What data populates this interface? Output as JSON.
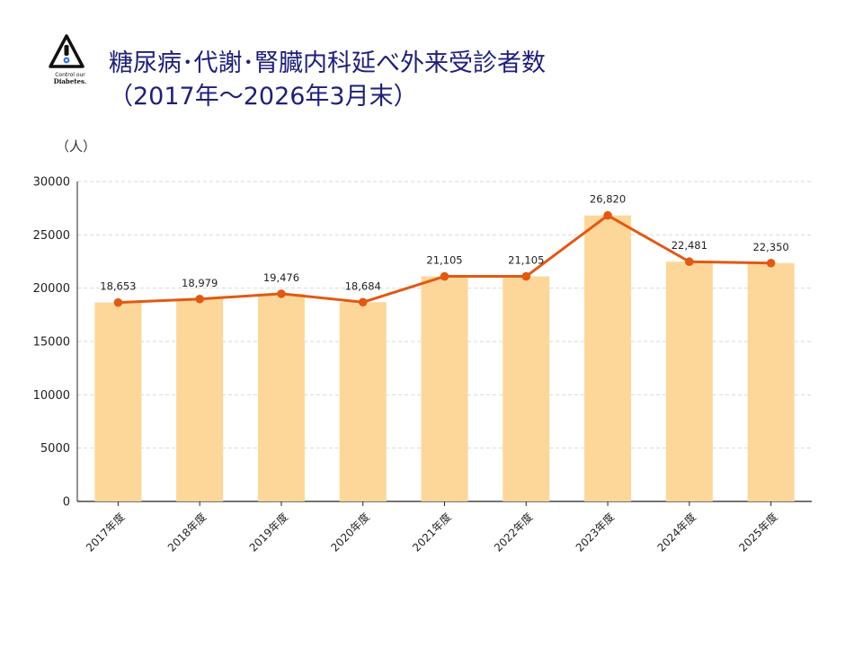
{
  "logo": {
    "text_line1": "Control our",
    "text_line2": "Diabetes.",
    "icon": "warning-triangle-icon"
  },
  "header": {
    "title_line1": "糖尿病･代謝･腎臓内科延べ外来受診者数",
    "title_line2": "（2017年～2026年3月末）"
  },
  "chart_data": {
    "type": "bar",
    "unit_label": "（人）",
    "categories": [
      "2017年度",
      "2018年度",
      "2019年度",
      "2020年度",
      "2021年度",
      "2022年度",
      "2023年度",
      "2024年度",
      "2025年度"
    ],
    "series": [
      {
        "type": "bar",
        "values": [
          18653,
          18979,
          19476,
          18684,
          21105,
          21105,
          26820,
          22481,
          22350
        ]
      },
      {
        "type": "line",
        "values": [
          18653,
          18979,
          19476,
          18684,
          21105,
          21105,
          26820,
          22481,
          22350
        ]
      }
    ],
    "data_labels": [
      "18,653",
      "18,979",
      "19,476",
      "18,684",
      "21,105",
      "21,105",
      "26,820",
      "22,481",
      "22,350"
    ],
    "ylim": [
      0,
      30000
    ],
    "yticks": [
      0,
      5000,
      10000,
      15000,
      20000,
      25000,
      30000
    ],
    "grid": true,
    "colors": {
      "bar": "#fdd699",
      "line": "#e05a14",
      "grid": "#d9d9d9",
      "title": "#1f1f7a"
    }
  }
}
